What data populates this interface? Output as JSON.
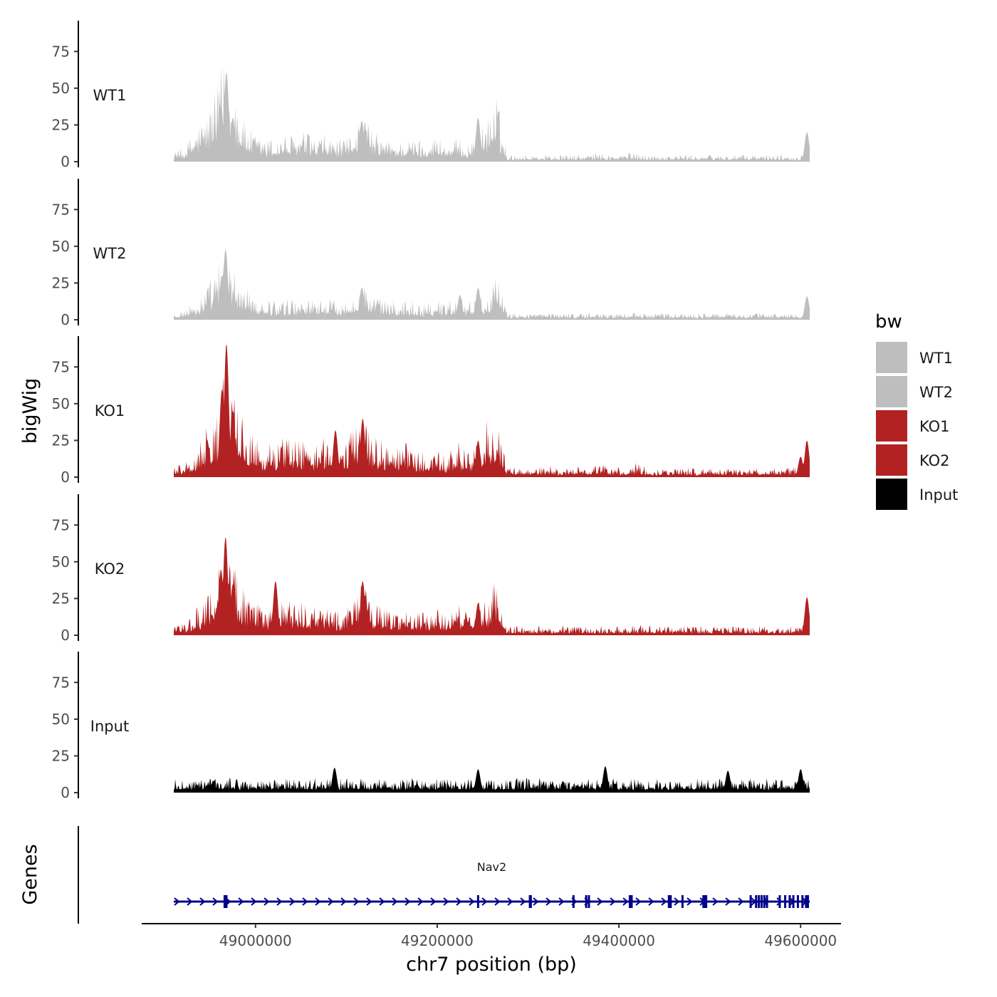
{
  "chart_data": {
    "type": "area",
    "xlabel": "chr7 position (bp)",
    "ylabel": "bigWig",
    "genes_label": "Genes",
    "x_range": [
      48910000,
      49610000
    ],
    "x_ticks": [
      "49000000",
      "49200000",
      "49400000",
      "49600000"
    ],
    "x_tick_values": [
      49000000,
      49200000,
      49400000,
      49600000
    ],
    "ylim": [
      0,
      95
    ],
    "y_ticks": [
      "0",
      "25",
      "50",
      "75"
    ],
    "y_tick_values": [
      0,
      25,
      50,
      75
    ],
    "legend": {
      "title": "bw",
      "placement": "right",
      "entries": [
        {
          "label": "WT1",
          "color": "#bebebe"
        },
        {
          "label": "WT2",
          "color": "#bebebe"
        },
        {
          "label": "KO1",
          "color": "#b22222"
        },
        {
          "label": "KO2",
          "color": "#b22222"
        },
        {
          "label": "Input",
          "color": "#000000"
        }
      ]
    },
    "series": [
      {
        "name": "WT1",
        "color": "#bebebe",
        "base": [
          5,
          6,
          14,
          20,
          30,
          45,
          38,
          18,
          12,
          11,
          10,
          12,
          11,
          14,
          10,
          12,
          10,
          9,
          18,
          20,
          12,
          10,
          9,
          10,
          10,
          9,
          12,
          8,
          10,
          8,
          10,
          20,
          30,
          3,
          3,
          3,
          3,
          3,
          3,
          3,
          3,
          3,
          4,
          3,
          3,
          4,
          4,
          3,
          3,
          3,
          3,
          3,
          3,
          3,
          3,
          3,
          3,
          3,
          3,
          3,
          3,
          3,
          3,
          5
        ],
        "peaks": [
          {
            "x": 48968000,
            "y": 61
          },
          {
            "x": 48962000,
            "y": 38
          },
          {
            "x": 48975000,
            "y": 30
          },
          {
            "x": 49117000,
            "y": 28
          },
          {
            "x": 49245000,
            "y": 30
          },
          {
            "x": 49607000,
            "y": 20
          }
        ]
      },
      {
        "name": "WT2",
        "color": "#bebebe",
        "base": [
          4,
          5,
          8,
          12,
          20,
          30,
          25,
          14,
          10,
          9,
          9,
          10,
          9,
          10,
          9,
          10,
          9,
          8,
          14,
          16,
          10,
          9,
          8,
          9,
          8,
          8,
          9,
          8,
          12,
          8,
          10,
          14,
          20,
          3,
          3,
          3,
          3,
          3,
          3,
          3,
          3,
          3,
          3,
          3,
          3,
          3,
          3,
          3,
          3,
          3,
          3,
          3,
          3,
          3,
          3,
          3,
          3,
          3,
          3,
          3,
          3,
          3,
          3,
          5
        ],
        "peaks": [
          {
            "x": 48967000,
            "y": 48
          },
          {
            "x": 48963000,
            "y": 30
          },
          {
            "x": 49117000,
            "y": 22
          },
          {
            "x": 49225000,
            "y": 17
          },
          {
            "x": 49245000,
            "y": 22
          },
          {
            "x": 49607000,
            "y": 16
          }
        ]
      },
      {
        "name": "KO1",
        "color": "#b22222",
        "base": [
          5,
          6,
          10,
          20,
          32,
          42,
          36,
          22,
          18,
          16,
          14,
          18,
          20,
          16,
          14,
          18,
          16,
          14,
          24,
          28,
          18,
          16,
          14,
          16,
          12,
          10,
          14,
          8,
          16,
          12,
          14,
          24,
          30,
          4,
          4,
          4,
          4,
          5,
          4,
          4,
          5,
          4,
          6,
          5,
          4,
          5,
          6,
          4,
          4,
          4,
          4,
          4,
          4,
          4,
          4,
          4,
          4,
          4,
          4,
          4,
          4,
          4,
          4,
          8
        ],
        "peaks": [
          {
            "x": 48968000,
            "y": 91
          },
          {
            "x": 48963000,
            "y": 60
          },
          {
            "x": 48975000,
            "y": 45
          },
          {
            "x": 49118000,
            "y": 40
          },
          {
            "x": 49088000,
            "y": 32
          },
          {
            "x": 49245000,
            "y": 25
          },
          {
            "x": 49600000,
            "y": 14
          },
          {
            "x": 49607000,
            "y": 25
          }
        ]
      },
      {
        "name": "KO2",
        "color": "#b22222",
        "base": [
          5,
          6,
          10,
          16,
          28,
          38,
          32,
          20,
          14,
          13,
          12,
          16,
          14,
          14,
          12,
          14,
          12,
          11,
          20,
          22,
          14,
          12,
          11,
          12,
          11,
          10,
          12,
          8,
          14,
          10,
          12,
          18,
          24,
          4,
          4,
          4,
          4,
          4,
          4,
          4,
          4,
          4,
          4,
          4,
          4,
          4,
          5,
          4,
          4,
          4,
          4,
          4,
          4,
          4,
          4,
          4,
          4,
          4,
          4,
          4,
          4,
          4,
          4,
          7
        ],
        "peaks": [
          {
            "x": 48967000,
            "y": 67
          },
          {
            "x": 48962000,
            "y": 45
          },
          {
            "x": 48975000,
            "y": 35
          },
          {
            "x": 49022000,
            "y": 37
          },
          {
            "x": 49118000,
            "y": 37
          },
          {
            "x": 49245000,
            "y": 22
          },
          {
            "x": 49607000,
            "y": 26
          }
        ]
      },
      {
        "name": "Input",
        "color": "#000000",
        "base": [
          6,
          6,
          6,
          6,
          6,
          6,
          6,
          6,
          6,
          6,
          6,
          6,
          6,
          6,
          6,
          6,
          6,
          6,
          6,
          6,
          6,
          6,
          6,
          6,
          6,
          6,
          6,
          6,
          6,
          6,
          6,
          6,
          6,
          6,
          6,
          6,
          6,
          6,
          6,
          6,
          6,
          6,
          6,
          6,
          6,
          6,
          6,
          6,
          6,
          6,
          6,
          6,
          6,
          6,
          6,
          6,
          6,
          6,
          6,
          6,
          6,
          6,
          6,
          6
        ],
        "peaks": [
          {
            "x": 49087000,
            "y": 17
          },
          {
            "x": 49245000,
            "y": 16
          },
          {
            "x": 49385000,
            "y": 18
          },
          {
            "x": 49520000,
            "y": 15
          },
          {
            "x": 49600000,
            "y": 16
          }
        ]
      }
    ],
    "genes": [
      {
        "name": "Nav2",
        "start": 48910000,
        "end": 49610000,
        "strand": "+",
        "color": "#00008b",
        "exons": [
          48966000,
          48968000,
          49245000,
          49302000,
          49303000,
          49350000,
          49364000,
          49367000,
          49412000,
          49413000,
          49414000,
          49455000,
          49457000,
          49470000,
          49493000,
          49495000,
          49496000,
          49545000,
          49551000,
          49554000,
          49557000,
          49560000,
          49563000,
          49577000,
          49583000,
          49588000,
          49592000,
          49597000,
          49602000,
          49606000,
          49607000,
          49608000
        ]
      }
    ]
  }
}
